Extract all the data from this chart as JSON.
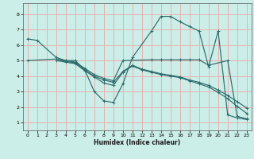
{
  "xlabel": "Humidex (Indice chaleur)",
  "line_color": "#2e6b6b",
  "bg_color": "#cceee8",
  "grid_color": "#e8b0b0",
  "xlim": [
    -0.5,
    23.5
  ],
  "ylim": [
    0.5,
    8.7
  ],
  "xticks": [
    0,
    1,
    2,
    3,
    4,
    5,
    6,
    7,
    8,
    9,
    10,
    11,
    12,
    13,
    14,
    15,
    16,
    17,
    18,
    19,
    20,
    21,
    22,
    23
  ],
  "yticks": [
    1,
    2,
    3,
    4,
    5,
    6,
    7,
    8
  ],
  "lines": [
    {
      "x": [
        0,
        1,
        3,
        4,
        5,
        6,
        7,
        8,
        9,
        10,
        11,
        13,
        14,
        15,
        16,
        17,
        18,
        19,
        20,
        21,
        22,
        23
      ],
      "y": [
        6.4,
        6.3,
        5.2,
        5.0,
        5.0,
        4.4,
        3.0,
        2.4,
        2.3,
        3.5,
        5.2,
        6.9,
        7.85,
        7.85,
        7.5,
        7.2,
        6.9,
        4.6,
        6.9,
        1.5,
        1.3,
        1.2
      ]
    },
    {
      "x": [
        0,
        3,
        4,
        5,
        6,
        7,
        8,
        9,
        10,
        13,
        14,
        15,
        16,
        17,
        18,
        19,
        21,
        22,
        23
      ],
      "y": [
        5.0,
        5.1,
        5.0,
        4.9,
        4.5,
        4.1,
        3.85,
        3.7,
        5.0,
        5.05,
        5.05,
        5.05,
        5.05,
        5.05,
        5.05,
        4.7,
        5.0,
        1.4,
        1.25
      ]
    },
    {
      "x": [
        3,
        4,
        5,
        6,
        7,
        8,
        9,
        10,
        11,
        12,
        13,
        14,
        15,
        16,
        17,
        18,
        19,
        20,
        21,
        22,
        23
      ],
      "y": [
        5.1,
        4.95,
        4.85,
        4.4,
        4.0,
        3.75,
        3.6,
        4.3,
        4.7,
        4.45,
        4.3,
        4.15,
        4.05,
        3.95,
        3.75,
        3.6,
        3.4,
        3.1,
        2.75,
        2.35,
        1.95
      ]
    },
    {
      "x": [
        3,
        4,
        5,
        6,
        7,
        8,
        9,
        10,
        11,
        12,
        13,
        14,
        15,
        16,
        17,
        18,
        19,
        20,
        21,
        22,
        23
      ],
      "y": [
        5.0,
        4.9,
        4.8,
        4.35,
        3.95,
        3.55,
        3.4,
        4.25,
        4.65,
        4.4,
        4.25,
        4.1,
        4.0,
        3.9,
        3.7,
        3.5,
        3.3,
        2.95,
        2.55,
        2.05,
        1.6
      ]
    }
  ]
}
